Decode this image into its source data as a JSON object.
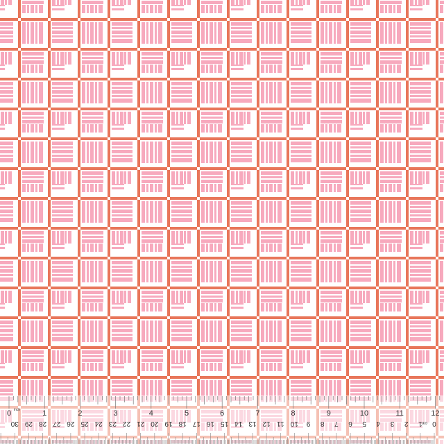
{
  "fabric": {
    "colors": {
      "grid_line": "#e8765a",
      "stripe": "#f7a9bd",
      "background": "#ffffff"
    },
    "pattern": "alternating vertical and horizontal striped squares in an orange grid"
  },
  "ruler": {
    "inch_unit": "inch",
    "cm_unit": "cm",
    "inch_labels": [
      "0",
      "1",
      "2",
      "3",
      "4",
      "5",
      "6",
      "7",
      "8",
      "9",
      "10",
      "11",
      "12"
    ],
    "cm_labels": [
      "30",
      "29",
      "28",
      "27",
      "26",
      "25",
      "24",
      "23",
      "22",
      "21",
      "20",
      "19",
      "18",
      "17",
      "16",
      "15",
      "14",
      "13",
      "12",
      "11",
      "10",
      "9",
      "8",
      "7",
      "6",
      "5",
      "4",
      "3",
      "2",
      "1",
      "0"
    ]
  }
}
